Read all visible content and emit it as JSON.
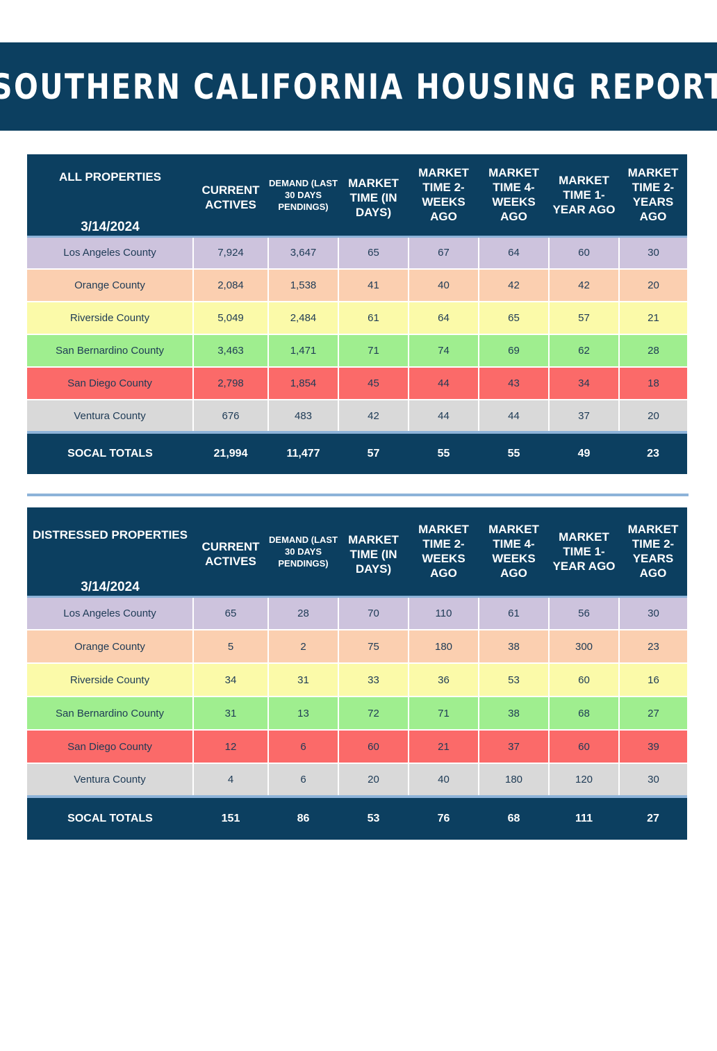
{
  "title": "SOUTHERN CALIFORNIA HOUSING REPORT",
  "columns": {
    "current_actives": "CURRENT ACTIVES",
    "demand": "DEMAND (LAST 30 DAYS PENDINGS)",
    "market_time": "MARKET TIME (IN DAYS)",
    "mt_2weeks": "MARKET TIME 2-WEEKS AGO",
    "mt_4weeks": "MARKET TIME 4-WEEKS AGO",
    "mt_1year": "MARKET TIME 1-YEAR AGO",
    "mt_2years": "MARKET TIME 2-YEARS AGO"
  },
  "tables": [
    {
      "label": "ALL PROPERTIES",
      "date": "3/14/2024",
      "rows": [
        {
          "county": "Los Angeles County",
          "values": [
            "7,924",
            "3,647",
            "65",
            "67",
            "64",
            "60",
            "30"
          ]
        },
        {
          "county": "Orange County",
          "values": [
            "2,084",
            "1,538",
            "41",
            "40",
            "42",
            "42",
            "20"
          ]
        },
        {
          "county": "Riverside County",
          "values": [
            "5,049",
            "2,484",
            "61",
            "64",
            "65",
            "57",
            "21"
          ]
        },
        {
          "county": "San Bernardino County",
          "values": [
            "3,463",
            "1,471",
            "71",
            "74",
            "69",
            "62",
            "28"
          ]
        },
        {
          "county": "San Diego County",
          "values": [
            "2,798",
            "1,854",
            "45",
            "44",
            "43",
            "34",
            "18"
          ]
        },
        {
          "county": "Ventura County",
          "values": [
            "676",
            "483",
            "42",
            "44",
            "44",
            "37",
            "20"
          ]
        }
      ],
      "totals": {
        "label": "SOCAL TOTALS",
        "values": [
          "21,994",
          "11,477",
          "57",
          "55",
          "55",
          "49",
          "23"
        ]
      }
    },
    {
      "label": "DISTRESSED PROPERTIES",
      "date": "3/14/2024",
      "rows": [
        {
          "county": "Los Angeles County",
          "values": [
            "65",
            "28",
            "70",
            "110",
            "61",
            "56",
            "30"
          ]
        },
        {
          "county": "Orange County",
          "values": [
            "5",
            "2",
            "75",
            "180",
            "38",
            "300",
            "23"
          ]
        },
        {
          "county": "Riverside County",
          "values": [
            "34",
            "31",
            "33",
            "36",
            "53",
            "60",
            "16"
          ]
        },
        {
          "county": "San Bernardino County",
          "values": [
            "31",
            "13",
            "72",
            "71",
            "38",
            "68",
            "27"
          ]
        },
        {
          "county": "San Diego County",
          "values": [
            "12",
            "6",
            "60",
            "21",
            "37",
            "60",
            "39"
          ]
        },
        {
          "county": "Ventura County",
          "values": [
            "4",
            "6",
            "20",
            "40",
            "180",
            "120",
            "30"
          ]
        }
      ],
      "totals": {
        "label": "SOCAL TOTALS",
        "values": [
          "151",
          "86",
          "53",
          "76",
          "68",
          "111",
          "27"
        ]
      }
    }
  ],
  "colors": {
    "header_navy": "#0c3f60",
    "accent_line": "#8db3d9",
    "los_angeles": "#cdc3dd",
    "orange": "#fbcfb0",
    "riverside": "#fbfaa9",
    "san_bernardino": "#9fee8f",
    "san_diego": "#fb6a69",
    "ventura": "#d9d9d9"
  }
}
